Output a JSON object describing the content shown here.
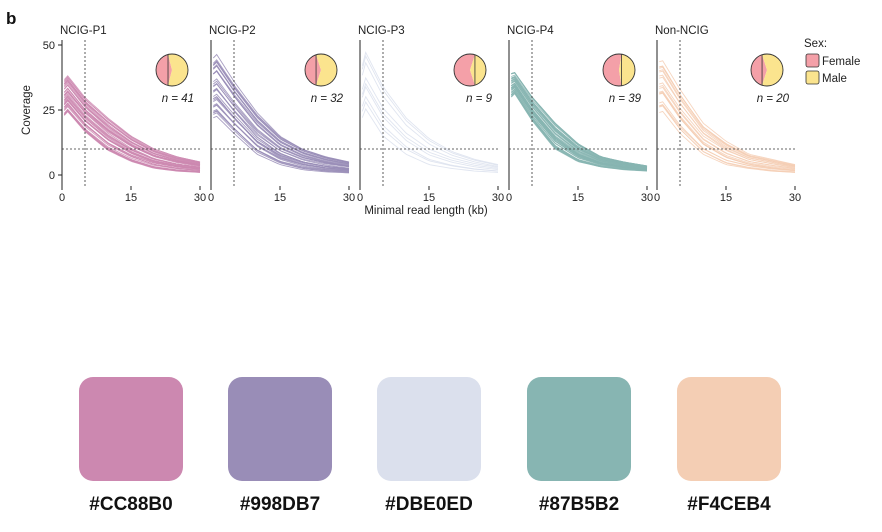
{
  "panel_label": "b",
  "chart_data": {
    "type": "line",
    "xlabel": "Minimal read length (kb)",
    "ylabel": "Coverage",
    "xlim": [
      0,
      30
    ],
    "ylim": [
      0,
      50
    ],
    "xticks": [
      0,
      15,
      30
    ],
    "yticks": [
      0,
      25,
      50
    ],
    "reference_lines": {
      "x": 5,
      "y": 10
    },
    "legend": {
      "title": "Sex:",
      "entries": [
        {
          "name": "Female",
          "color": "#F4A0A8"
        },
        {
          "name": "Male",
          "color": "#FBE48E"
        }
      ],
      "placement": "right"
    },
    "panels": [
      {
        "title": "NCIG-P1",
        "n_label": "n = 41",
        "color": "#CC88B0",
        "line_count": 41,
        "female_fraction": 0.42,
        "x": [
          0.5,
          1,
          5,
          10,
          15,
          20,
          25,
          30
        ],
        "median": [
          33,
          34,
          23,
          15.5,
          10,
          6.5,
          4.3,
          3
        ],
        "low": [
          22,
          24,
          16,
          9,
          5,
          2.5,
          1.5,
          1
        ],
        "high": [
          37,
          39,
          30,
          22,
          15,
          10,
          7,
          5
        ]
      },
      {
        "title": "NCIG-P2",
        "n_label": "n = 32",
        "color": "#998DB7",
        "line_count": 32,
        "female_fraction": 0.4,
        "x": [
          0.5,
          1,
          5,
          10,
          15,
          20,
          25,
          30
        ],
        "median": [
          30,
          31,
          23,
          14,
          9,
          5.5,
          3.5,
          2.5
        ],
        "low": [
          22,
          23,
          16,
          8,
          4,
          2,
          1.2,
          0.8
        ],
        "high": [
          45,
          47,
          36,
          24,
          15,
          10,
          7,
          5
        ]
      },
      {
        "title": "NCIG-P3",
        "n_label": "n = 9",
        "color": "#DBE0ED",
        "line_count": 9,
        "female_fraction": 0.6,
        "x": [
          0.5,
          1,
          5,
          10,
          15,
          20,
          25,
          30
        ],
        "median": [
          30,
          32,
          22,
          13,
          8,
          5,
          3.5,
          2.5
        ],
        "low": [
          22,
          26,
          15,
          8,
          4,
          2.5,
          1.5,
          1
        ],
        "high": [
          42,
          48,
          34,
          22,
          14,
          9,
          6,
          4
        ]
      },
      {
        "title": "NCIG-P4",
        "n_label": "n = 39",
        "color": "#87B5B2",
        "line_count": 39,
        "female_fraction": 0.55,
        "x": [
          0.5,
          1,
          5,
          10,
          15,
          20,
          25,
          30
        ],
        "median": [
          34,
          35,
          25,
          14,
          8,
          5,
          3.5,
          2.5
        ],
        "low": [
          30,
          32,
          21,
          10,
          5,
          3,
          2,
          1.5
        ],
        "high": [
          39,
          40,
          30,
          20,
          12,
          7,
          5,
          3.5
        ]
      },
      {
        "title": "Non-NCIG",
        "n_label": "n = 20",
        "color": "#F4CEB4",
        "line_count": 20,
        "female_fraction": 0.4,
        "x": [
          0.5,
          1,
          5,
          10,
          15,
          20,
          25,
          30
        ],
        "median": [
          32,
          33,
          22,
          12,
          7,
          4.5,
          3,
          2
        ],
        "low": [
          24,
          25,
          16,
          8,
          4,
          2.5,
          1.5,
          1
        ],
        "high": [
          44,
          45,
          33,
          20,
          13,
          8,
          6,
          4
        ]
      }
    ]
  },
  "swatches": [
    {
      "hex": "#CC88B0"
    },
    {
      "hex": "#998DB7"
    },
    {
      "hex": "#DBE0ED"
    },
    {
      "hex": "#87B5B2"
    },
    {
      "hex": "#F4CEB4"
    }
  ]
}
